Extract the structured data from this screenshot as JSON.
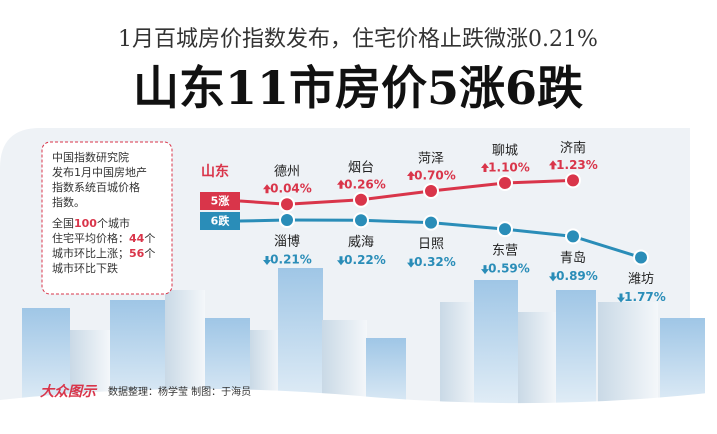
{
  "chart_data": {
    "type": "line",
    "subtitle": "1月百城房价指数发布，住宅价格止跌微涨0.21%",
    "title": "山东11市房价5涨6跌",
    "region_label": "山东",
    "series": [
      {
        "name": "5涨",
        "color": "#d9354a",
        "categories": [
          "德州",
          "烟台",
          "菏泽",
          "聊城",
          "济南"
        ],
        "values": [
          0.04,
          0.26,
          0.7,
          1.1,
          1.23
        ],
        "value_labels": [
          "0.04%",
          "0.26%",
          "0.70%",
          "1.10%",
          "1.23%"
        ]
      },
      {
        "name": "6跌",
        "color": "#2a8db8",
        "categories": [
          "淄博",
          "威海",
          "日照",
          "东营",
          "青岛",
          "潍坊"
        ],
        "values": [
          -0.21,
          -0.22,
          -0.32,
          -0.59,
          -0.89,
          -1.77
        ],
        "value_labels": [
          "0.21%",
          "0.22%",
          "0.32%",
          "0.59%",
          "0.89%",
          "1.77%"
        ]
      }
    ],
    "note": {
      "paragraph1": [
        "中国指数研究院",
        "发布1月中国房地产",
        "指数系统百城价格",
        "指数。"
      ],
      "paragraph2": [
        [
          "全国",
          "100",
          "个城市"
        ],
        [
          "住宅平均价格：",
          "44",
          "个"
        ],
        [
          "城市环比上涨；",
          "56",
          "个"
        ],
        [
          "城市环比下跌"
        ]
      ]
    },
    "logo": "大众图示",
    "credits": "数据整理：杨学莹   制图：于海员"
  }
}
